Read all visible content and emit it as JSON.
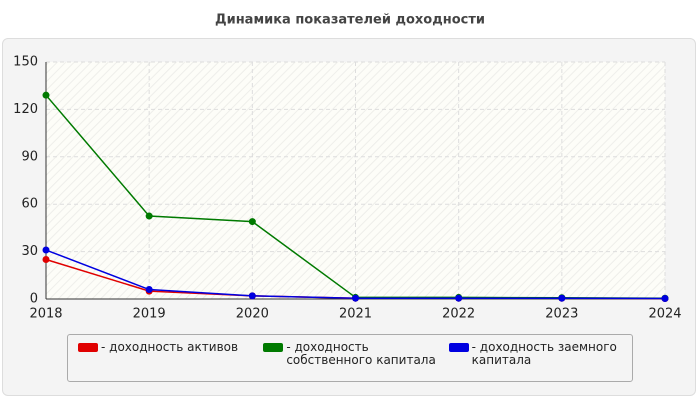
{
  "chart_data": {
    "type": "line",
    "title": "Динамика показателей доходности",
    "x": [
      2018,
      2019,
      2020,
      2021,
      2022,
      2023,
      2024
    ],
    "xlim": [
      2018,
      2024
    ],
    "xticks": [
      2018,
      2019,
      2020,
      2021,
      2022,
      2023,
      2024
    ],
    "ylim": [
      0,
      150
    ],
    "yticks": [
      0,
      30,
      60,
      90,
      120,
      150
    ],
    "grid": true,
    "legend": "bottom",
    "series": [
      {
        "name": "- доходность активов",
        "color": "#e00000",
        "values": [
          25,
          5,
          2,
          0.5,
          0.5,
          0.5,
          0.3
        ]
      },
      {
        "name": "- доходность собственного капитала",
        "color": "#007a00",
        "values": [
          129,
          52.5,
          49,
          1,
          1,
          0.8,
          0.5
        ]
      },
      {
        "name": "- доходность заемного капитала",
        "color": "#0000e0",
        "values": [
          31,
          6,
          2,
          0.5,
          0.5,
          0.5,
          0.3
        ]
      }
    ]
  }
}
